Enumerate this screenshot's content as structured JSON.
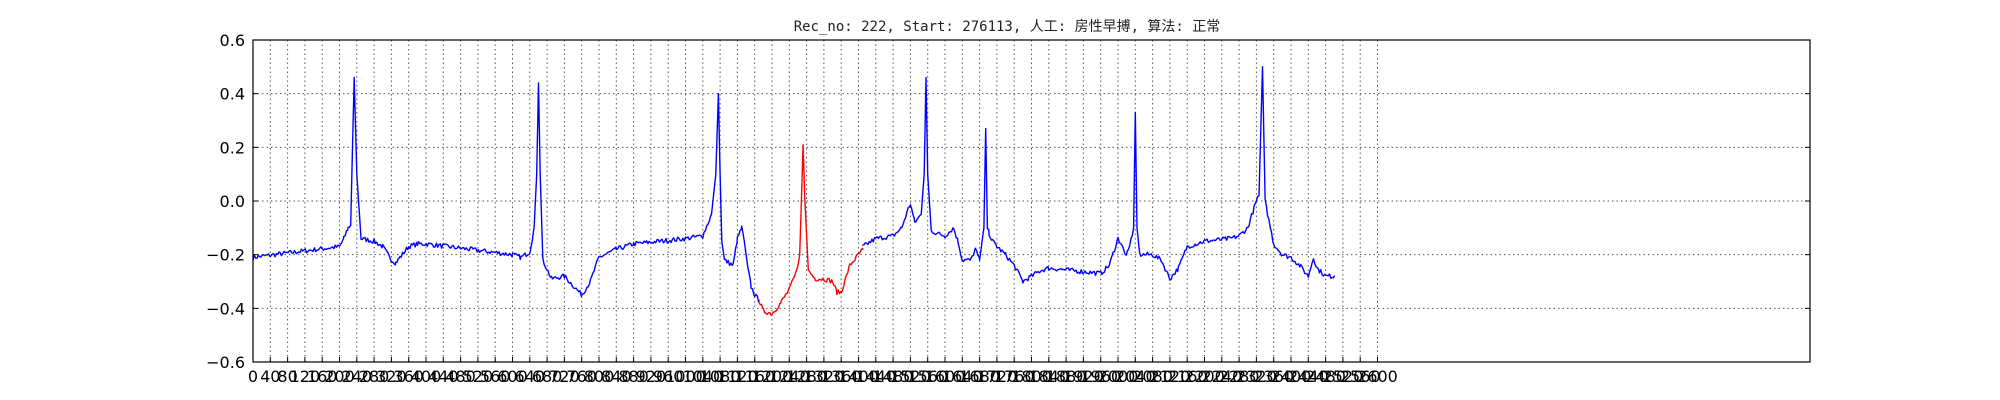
{
  "chart_data": {
    "type": "line",
    "title": "Rec_no: 222, Start: 276113, 人工: 房性早搏, 算法: 正常",
    "xlabel": "",
    "ylabel": "",
    "xlim": [
      0,
      3600
    ],
    "ylim": [
      -0.6,
      0.6
    ],
    "x_tick_step": 40,
    "x_tick_labels": [
      "0",
      "40",
      "80",
      "120",
      "160",
      "200",
      "240",
      "280",
      "320",
      "360",
      "400",
      "440",
      "480",
      "520",
      "560",
      "600",
      "640",
      "680",
      "720",
      "760",
      "800",
      "840",
      "880",
      "920",
      "960",
      "1000",
      "1040",
      "1080",
      "1120",
      "1160",
      "1200",
      "1240",
      "1280",
      "1320",
      "1360",
      "1400",
      "1440",
      "1480",
      "1520",
      "1560",
      "1600",
      "1640",
      "1680",
      "1720",
      "1760",
      "1800",
      "1840",
      "1880",
      "1920",
      "1960",
      "2000",
      "2040",
      "2080",
      "2120",
      "2160",
      "2200",
      "2240",
      "2280",
      "2320",
      "2360",
      "2400",
      "2440",
      "2480",
      "2520",
      "2560",
      "2600"
    ],
    "y_ticks": [
      -0.6,
      -0.4,
      -0.2,
      0.0,
      0.2,
      0.4,
      0.6
    ],
    "y_tick_labels": [
      "−0.6",
      "−0.4",
      "−0.2",
      "0.0",
      "0.2",
      "0.4",
      "0.6"
    ],
    "grid": true,
    "legend": "none",
    "colors": {
      "normal": "#0000ff",
      "highlight": "#ff0000"
    },
    "series": [
      {
        "color": "#0000ff",
        "x": [
          0,
          100,
          200,
          210,
          220,
          226,
          230,
          234,
          240,
          250,
          280,
          300,
          320,
          330,
          340,
          360,
          380,
          400,
          500,
          600,
          620,
          640,
          650,
          656,
          660,
          664,
          670,
          690,
          720,
          760,
          780,
          800,
          840,
          880,
          1000,
          1040,
          1060,
          1070,
          1076,
          1080,
          1084,
          1090,
          1110,
          1120,
          1130,
          1136,
          1144,
          1152,
          1160,
          1170
        ],
        "values": [
          -0.21,
          -0.19,
          -0.17,
          -0.14,
          -0.1,
          -0.09,
          0.2,
          0.46,
          0.1,
          -0.14,
          -0.15,
          -0.17,
          -0.22,
          -0.23,
          -0.21,
          -0.17,
          -0.16,
          -0.16,
          -0.18,
          -0.2,
          -0.21,
          -0.19,
          -0.1,
          0.1,
          0.44,
          0.1,
          -0.22,
          -0.29,
          -0.28,
          -0.35,
          -0.3,
          -0.21,
          -0.18,
          -0.16,
          -0.14,
          -0.13,
          -0.05,
          0.1,
          0.4,
          0.1,
          -0.15,
          -0.22,
          -0.24,
          -0.14,
          -0.1,
          -0.15,
          -0.25,
          -0.32,
          -0.35,
          -0.37
        ]
      },
      {
        "color": "#ff0000",
        "x": [
          1170,
          1180,
          1200,
          1220,
          1240,
          1255,
          1264,
          1268,
          1272,
          1276,
          1284,
          1300,
          1320,
          1340,
          1350,
          1360,
          1380,
          1400,
          1410
        ],
        "values": [
          -0.37,
          -0.41,
          -0.42,
          -0.38,
          -0.33,
          -0.27,
          -0.2,
          0.0,
          0.21,
          0.0,
          -0.26,
          -0.29,
          -0.29,
          -0.3,
          -0.34,
          -0.34,
          -0.24,
          -0.2,
          -0.18
        ]
      },
      {
        "color": "#0000ff",
        "x": [
          1410,
          1440,
          1480,
          1500,
          1515,
          1520,
          1530,
          1545,
          1552,
          1556,
          1560,
          1568,
          1580,
          1600,
          1620,
          1630,
          1640,
          1660,
          1670,
          1680,
          1690,
          1694,
          1698,
          1702,
          1710,
          1720,
          1740,
          1760,
          1780,
          1800,
          1820,
          1840,
          1900,
          1960,
          1980,
          2000,
          2008,
          2016,
          2024,
          2036,
          2040,
          2044,
          2050,
          2080,
          2100,
          2120,
          2140,
          2160,
          2200,
          2260,
          2280,
          2300,
          2320,
          2326,
          2334,
          2340,
          2360,
          2380,
          2400,
          2420,
          2440,
          2452,
          2460,
          2480,
          2500
        ],
        "values": [
          -0.17,
          -0.14,
          -0.13,
          -0.1,
          -0.03,
          -0.01,
          -0.08,
          -0.05,
          0.1,
          0.46,
          0.1,
          -0.11,
          -0.12,
          -0.13,
          -0.1,
          -0.15,
          -0.22,
          -0.22,
          -0.18,
          -0.22,
          -0.1,
          0.27,
          -0.1,
          -0.12,
          -0.15,
          -0.17,
          -0.2,
          -0.24,
          -0.3,
          -0.28,
          -0.26,
          -0.25,
          -0.26,
          -0.27,
          -0.24,
          -0.14,
          -0.16,
          -0.2,
          -0.19,
          -0.1,
          0.33,
          -0.1,
          -0.2,
          -0.2,
          -0.22,
          -0.29,
          -0.25,
          -0.17,
          -0.15,
          -0.14,
          -0.13,
          -0.1,
          0.0,
          0.02,
          0.5,
          0.0,
          -0.16,
          -0.2,
          -0.21,
          -0.24,
          -0.28,
          -0.21,
          -0.25,
          -0.28,
          -0.28
        ]
      }
    ]
  }
}
